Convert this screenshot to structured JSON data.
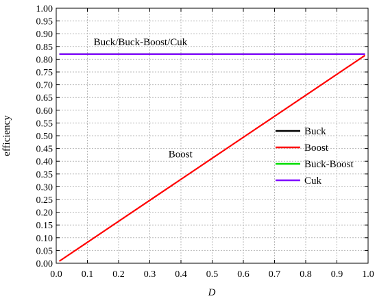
{
  "chart_data": {
    "type": "line",
    "xlabel": "D",
    "ylabel": "efficiency",
    "xlim": [
      0.0,
      1.0
    ],
    "ylim": [
      0.0,
      1.0
    ],
    "xticks": [
      "0.0",
      "0.1",
      "0.2",
      "0.3",
      "0.4",
      "0.5",
      "0.6",
      "0.7",
      "0.8",
      "0.9",
      "1.0"
    ],
    "yticks": [
      "0.00",
      "0.05",
      "0.10",
      "0.15",
      "0.20",
      "0.25",
      "0.30",
      "0.35",
      "0.40",
      "0.45",
      "0.50",
      "0.55",
      "0.60",
      "0.65",
      "0.70",
      "0.75",
      "0.80",
      "0.85",
      "0.90",
      "0.95",
      "1.00"
    ],
    "grid": true,
    "legend_position": "right-middle",
    "series": [
      {
        "name": "Buck",
        "color": "#000000",
        "x": [
          0.01,
          0.99
        ],
        "y": [
          0.82,
          0.82
        ]
      },
      {
        "name": "Boost",
        "color": "#ff0000",
        "x": [
          0.01,
          0.99
        ],
        "y": [
          0.008,
          0.815
        ]
      },
      {
        "name": "Buck-Boost",
        "color": "#00dd00",
        "x": [
          0.01,
          0.99
        ],
        "y": [
          0.82,
          0.82
        ]
      },
      {
        "name": "Cuk",
        "color": "#7f00ff",
        "x": [
          0.01,
          0.99
        ],
        "y": [
          0.82,
          0.82
        ]
      }
    ],
    "annotations": [
      {
        "text": "Buck/Buck-Boost/Cuk",
        "x": 0.12,
        "y": 0.855
      },
      {
        "text": "Boost",
        "x": 0.36,
        "y": 0.415
      }
    ]
  }
}
